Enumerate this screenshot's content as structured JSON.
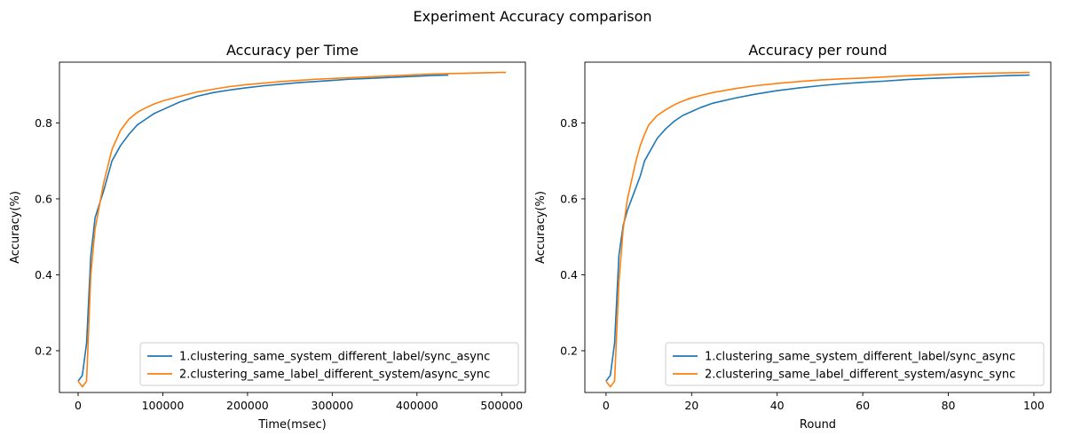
{
  "figure": {
    "suptitle": "Experiment Accuracy comparison"
  },
  "series_colors": [
    "#1f77b4",
    "#ff7f0e"
  ],
  "chart_data": [
    {
      "type": "line",
      "title": "Accuracy per Time",
      "xlabel": "Time(msec)",
      "ylabel": "Accuracy(%)",
      "xlim": [
        -22000,
        528000
      ],
      "ylim": [
        0.09,
        0.96
      ],
      "xticks": [
        0,
        100000,
        200000,
        300000,
        400000,
        500000
      ],
      "xtick_labels": [
        "0",
        "100000",
        "200000",
        "300000",
        "400000",
        "500000"
      ],
      "yticks": [
        0.2,
        0.4,
        0.6,
        0.8
      ],
      "ytick_labels": [
        "0.2",
        "0.4",
        "0.6",
        "0.8"
      ],
      "legend_position": "lower right",
      "series": [
        {
          "name": "1.clustering_same_system_different_label/sync_async",
          "x": [
            0,
            5000,
            10000,
            15000,
            20000,
            30000,
            40000,
            50000,
            60000,
            70000,
            80000,
            90000,
            100000,
            120000,
            140000,
            160000,
            180000,
            200000,
            220000,
            240000,
            260000,
            280000,
            300000,
            320000,
            340000,
            360000,
            380000,
            400000,
            420000,
            437000
          ],
          "y": [
            0.12,
            0.135,
            0.22,
            0.45,
            0.55,
            0.62,
            0.7,
            0.74,
            0.77,
            0.795,
            0.81,
            0.825,
            0.835,
            0.855,
            0.87,
            0.88,
            0.887,
            0.893,
            0.898,
            0.902,
            0.906,
            0.909,
            0.912,
            0.915,
            0.917,
            0.919,
            0.921,
            0.923,
            0.925,
            0.926
          ]
        },
        {
          "name": "2.clustering_same_label_different_system/async_sync",
          "x": [
            0,
            5000,
            10000,
            15000,
            20000,
            30000,
            40000,
            50000,
            60000,
            70000,
            80000,
            90000,
            100000,
            120000,
            140000,
            160000,
            180000,
            200000,
            220000,
            240000,
            260000,
            280000,
            300000,
            320000,
            340000,
            360000,
            380000,
            400000,
            420000,
            440000,
            460000,
            480000,
            500000,
            505000
          ],
          "y": [
            0.12,
            0.105,
            0.12,
            0.4,
            0.52,
            0.64,
            0.73,
            0.78,
            0.81,
            0.828,
            0.84,
            0.85,
            0.858,
            0.87,
            0.881,
            0.889,
            0.896,
            0.901,
            0.905,
            0.909,
            0.912,
            0.915,
            0.917,
            0.919,
            0.921,
            0.923,
            0.925,
            0.927,
            0.929,
            0.93,
            0.931,
            0.932,
            0.933,
            0.933
          ]
        }
      ]
    },
    {
      "type": "line",
      "title": "Accuracy per round",
      "xlabel": "Round",
      "ylabel": "Accuracy(%)",
      "xlim": [
        -4.95,
        103.95
      ],
      "ylim": [
        0.09,
        0.96
      ],
      "xticks": [
        0,
        20,
        40,
        60,
        80,
        100
      ],
      "xtick_labels": [
        "0",
        "20",
        "40",
        "60",
        "80",
        "100"
      ],
      "yticks": [
        0.2,
        0.4,
        0.6,
        0.8
      ],
      "ytick_labels": [
        "0.2",
        "0.4",
        "0.6",
        "0.8"
      ],
      "legend_position": "lower right",
      "series": [
        {
          "name": "1.clustering_same_system_different_label/sync_async",
          "x": [
            0,
            1,
            2,
            3,
            4,
            5,
            6,
            7,
            8,
            9,
            10,
            12,
            14,
            16,
            18,
            20,
            22,
            25,
            30,
            35,
            40,
            45,
            50,
            55,
            60,
            65,
            70,
            75,
            80,
            85,
            90,
            95,
            99
          ],
          "y": [
            0.12,
            0.135,
            0.22,
            0.45,
            0.53,
            0.57,
            0.6,
            0.63,
            0.66,
            0.7,
            0.72,
            0.76,
            0.785,
            0.805,
            0.82,
            0.83,
            0.84,
            0.852,
            0.865,
            0.876,
            0.885,
            0.892,
            0.898,
            0.903,
            0.907,
            0.91,
            0.914,
            0.917,
            0.919,
            0.921,
            0.923,
            0.925,
            0.926
          ]
        },
        {
          "name": "2.clustering_same_label_different_system/async_sync",
          "x": [
            0,
            1,
            2,
            3,
            4,
            5,
            6,
            7,
            8,
            9,
            10,
            12,
            14,
            16,
            18,
            20,
            22,
            25,
            30,
            35,
            40,
            45,
            50,
            55,
            60,
            65,
            70,
            75,
            80,
            85,
            90,
            95,
            99
          ],
          "y": [
            0.12,
            0.105,
            0.12,
            0.38,
            0.52,
            0.6,
            0.65,
            0.7,
            0.74,
            0.77,
            0.795,
            0.82,
            0.835,
            0.848,
            0.858,
            0.866,
            0.872,
            0.88,
            0.89,
            0.898,
            0.904,
            0.909,
            0.913,
            0.916,
            0.918,
            0.921,
            0.924,
            0.926,
            0.928,
            0.93,
            0.931,
            0.932,
            0.933
          ]
        }
      ]
    }
  ]
}
